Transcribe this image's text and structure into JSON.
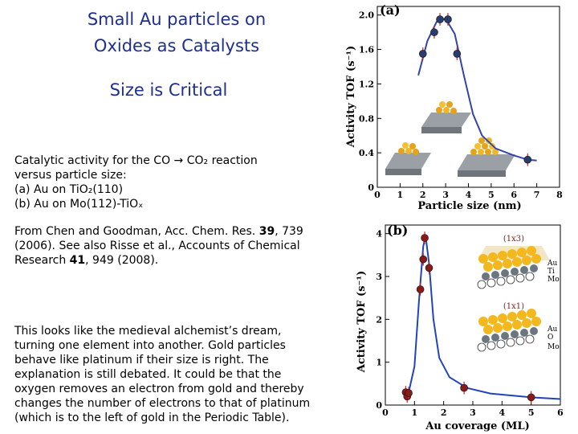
{
  "title": {
    "line1": "Small Au particles on",
    "line2": "Oxides  as  Catalysts",
    "line3": "Size is Critical"
  },
  "caption": {
    "line1": "Catalytic activity for the  CO → CO₂  reaction",
    "line2": "versus particle size:",
    "line3": "(a) Au on TiO₂(110)",
    "line4": "(b) Au on Mo(112)-TiOₓ"
  },
  "reference": {
    "line1_pre": "From Chen and Goodman, Acc. Chem. Res. ",
    "line1_vol": "39",
    "line1_post": ", 739",
    "line2": "(2006).  See also Risse et al., Accounts of Chemical",
    "line3_pre": "Research ",
    "line3_vol": "41",
    "line3_post": ", 949 (2008)."
  },
  "explanation": [
    "This looks like the medieval alchemist’s dream,",
    "turning one element into another. Gold particles",
    "behave like platinum if their size is right.  The",
    "explanation is still debated. It could be that the",
    "oxygen removes an electron from gold and thereby",
    "changes the number of electrons to that of platinum",
    "(which is to the left of gold in the Periodic Table)."
  ],
  "chart_data": [
    {
      "type": "line",
      "panel_label": "(a)",
      "xlabel": "Particle size (nm)",
      "ylabel": "Activity TOF (s⁻¹)",
      "xlim": [
        0,
        8
      ],
      "ylim": [
        0,
        2.1
      ],
      "xticks": [
        "0",
        "1",
        "2",
        "3",
        "4",
        "5",
        "6",
        "7",
        "8"
      ],
      "yticks": [
        "0",
        "0.4",
        "0.8",
        "1.2",
        "1.6",
        "2.0"
      ],
      "points": [
        {
          "x": 2.0,
          "y": 1.55
        },
        {
          "x": 2.5,
          "y": 1.8
        },
        {
          "x": 2.75,
          "y": 1.95
        },
        {
          "x": 3.1,
          "y": 1.95
        },
        {
          "x": 3.5,
          "y": 1.55
        },
        {
          "x": 6.6,
          "y": 0.32
        }
      ],
      "curve": [
        [
          1.8,
          1.3
        ],
        [
          2.2,
          1.7
        ],
        [
          2.6,
          1.92
        ],
        [
          3.0,
          1.96
        ],
        [
          3.4,
          1.78
        ],
        [
          3.8,
          1.3
        ],
        [
          4.2,
          0.85
        ],
        [
          4.6,
          0.6
        ],
        [
          5.2,
          0.45
        ],
        [
          6.0,
          0.37
        ],
        [
          6.6,
          0.32
        ],
        [
          7.0,
          0.31
        ]
      ],
      "colors": {
        "points": "#2a3b6e",
        "line": "#3344aa",
        "errorbar": "#cc2222"
      }
    },
    {
      "type": "line",
      "panel_label": "(b)",
      "xlabel": "Au coverage (ML)",
      "ylabel": "Activity TOF (s⁻¹)",
      "xlim": [
        0,
        6
      ],
      "ylim": [
        0,
        4.2
      ],
      "xticks": [
        "0",
        "1",
        "2",
        "3",
        "4",
        "5",
        "6"
      ],
      "yticks": [
        "0",
        "1",
        "2",
        "3",
        "4"
      ],
      "annotations": [
        "(1x3)",
        "(1x1)",
        "Au",
        "Ti",
        "Mo",
        "O"
      ],
      "points": [
        {
          "x": 0.7,
          "y": 0.3
        },
        {
          "x": 0.75,
          "y": 0.2
        },
        {
          "x": 0.8,
          "y": 0.28
        },
        {
          "x": 1.2,
          "y": 2.7
        },
        {
          "x": 1.3,
          "y": 3.4
        },
        {
          "x": 1.35,
          "y": 3.9
        },
        {
          "x": 1.5,
          "y": 3.2
        },
        {
          "x": 2.7,
          "y": 0.4
        },
        {
          "x": 5.0,
          "y": 0.18
        }
      ],
      "curve": [
        [
          0.6,
          0.25
        ],
        [
          0.8,
          0.3
        ],
        [
          1.0,
          0.9
        ],
        [
          1.15,
          2.4
        ],
        [
          1.3,
          3.7
        ],
        [
          1.38,
          3.95
        ],
        [
          1.5,
          3.3
        ],
        [
          1.65,
          2.0
        ],
        [
          1.85,
          1.1
        ],
        [
          2.2,
          0.65
        ],
        [
          2.8,
          0.4
        ],
        [
          3.6,
          0.27
        ],
        [
          5.0,
          0.18
        ],
        [
          6.0,
          0.14
        ]
      ],
      "colors": {
        "points": "#8a1a1a",
        "line": "#2244bb",
        "errorbar": "#cc2222"
      }
    }
  ]
}
